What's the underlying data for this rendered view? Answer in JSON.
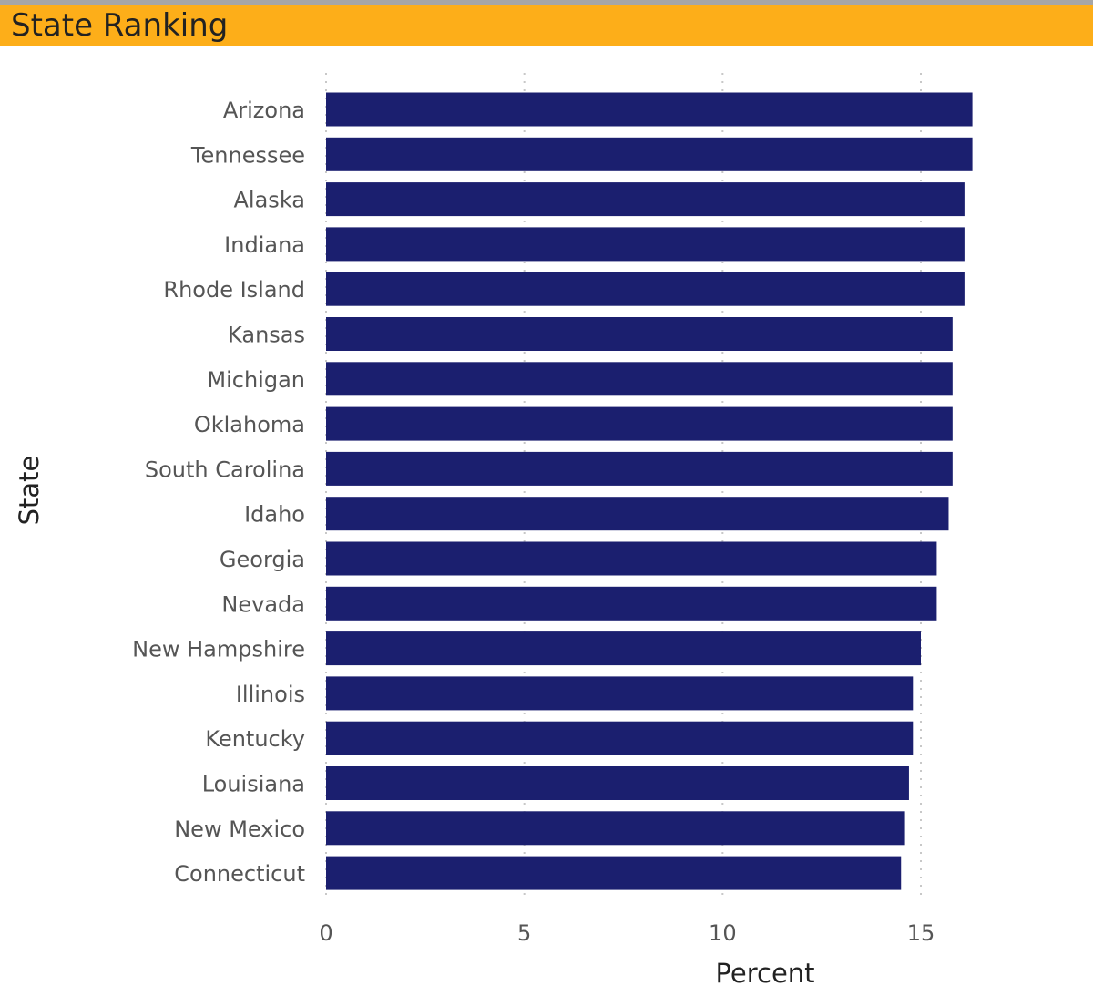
{
  "header": {
    "title": "State Ranking"
  },
  "colors": {
    "header_bg": "#fdae19",
    "bar": "#1b1f6f",
    "grid": "#c8c8c8"
  },
  "chart_data": {
    "type": "bar",
    "orientation": "horizontal",
    "xlabel": "Percent",
    "ylabel": "State",
    "xlim": [
      0,
      17
    ],
    "xticks": [
      0,
      5,
      10,
      15
    ],
    "grid": true,
    "categories": [
      "Arizona",
      "Tennessee",
      "Alaska",
      "Indiana",
      "Rhode Island",
      "Kansas",
      "Michigan",
      "Oklahoma",
      "South Carolina",
      "Idaho",
      "Georgia",
      "Nevada",
      "New Hampshire",
      "Illinois",
      "Kentucky",
      "Louisiana",
      "New Mexico",
      "Connecticut"
    ],
    "values": [
      16.3,
      16.3,
      16.1,
      16.1,
      16.1,
      15.8,
      15.8,
      15.8,
      15.8,
      15.7,
      15.4,
      15.4,
      15.0,
      14.8,
      14.8,
      14.7,
      14.6,
      14.5
    ]
  }
}
